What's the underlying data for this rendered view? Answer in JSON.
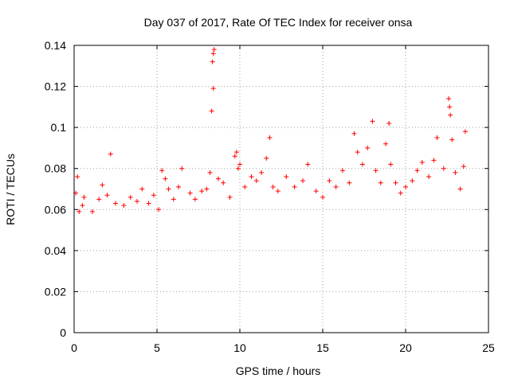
{
  "chart_data": {
    "type": "scatter",
    "title": "Day 037 of 2017, Rate Of TEC Index for receiver onsa",
    "xlabel": "GPS time / hours",
    "ylabel": "ROTI / TECUs",
    "xlim": [
      0,
      25
    ],
    "ylim": [
      0,
      0.14
    ],
    "xticks": [
      "0",
      "5",
      "10",
      "15",
      "20",
      "25"
    ],
    "yticks": [
      "0",
      "0.02",
      "0.04",
      "0.06",
      "0.08",
      "0.1",
      "0.12",
      "0.14"
    ],
    "grid": true,
    "marker": "plus",
    "color": "#ff0000",
    "series": [
      {
        "points": [
          [
            0.1,
            0.068
          ],
          [
            0.2,
            0.076
          ],
          [
            0.3,
            0.059
          ],
          [
            0.5,
            0.062
          ],
          [
            0.6,
            0.066
          ],
          [
            1.1,
            0.059
          ],
          [
            1.5,
            0.065
          ],
          [
            1.7,
            0.072
          ],
          [
            2.0,
            0.067
          ],
          [
            2.2,
            0.087
          ],
          [
            2.5,
            0.063
          ],
          [
            3.0,
            0.062
          ],
          [
            3.4,
            0.066
          ],
          [
            3.8,
            0.064
          ],
          [
            4.1,
            0.07
          ],
          [
            4.5,
            0.063
          ],
          [
            4.8,
            0.067
          ],
          [
            5.1,
            0.06
          ],
          [
            5.3,
            0.079
          ],
          [
            5.5,
            0.075
          ],
          [
            5.7,
            0.07
          ],
          [
            6.0,
            0.065
          ],
          [
            6.3,
            0.071
          ],
          [
            6.5,
            0.08
          ],
          [
            7.0,
            0.068
          ],
          [
            7.3,
            0.065
          ],
          [
            7.7,
            0.069
          ],
          [
            8.0,
            0.07
          ],
          [
            8.2,
            0.078
          ],
          [
            8.3,
            0.108
          ],
          [
            8.35,
            0.132
          ],
          [
            8.4,
            0.136
          ],
          [
            8.45,
            0.138
          ],
          [
            8.4,
            0.119
          ],
          [
            8.7,
            0.075
          ],
          [
            9.0,
            0.073
          ],
          [
            9.4,
            0.066
          ],
          [
            9.7,
            0.086
          ],
          [
            9.8,
            0.088
          ],
          [
            9.9,
            0.08
          ],
          [
            10.0,
            0.082
          ],
          [
            10.3,
            0.071
          ],
          [
            10.7,
            0.076
          ],
          [
            11.0,
            0.074
          ],
          [
            11.3,
            0.078
          ],
          [
            11.6,
            0.085
          ],
          [
            11.8,
            0.095
          ],
          [
            12.0,
            0.071
          ],
          [
            12.3,
            0.069
          ],
          [
            12.8,
            0.076
          ],
          [
            13.3,
            0.071
          ],
          [
            13.8,
            0.074
          ],
          [
            14.1,
            0.082
          ],
          [
            14.6,
            0.069
          ],
          [
            15.0,
            0.066
          ],
          [
            15.4,
            0.074
          ],
          [
            15.8,
            0.071
          ],
          [
            16.2,
            0.079
          ],
          [
            16.6,
            0.073
          ],
          [
            16.9,
            0.097
          ],
          [
            17.1,
            0.088
          ],
          [
            17.4,
            0.082
          ],
          [
            17.7,
            0.09
          ],
          [
            18.0,
            0.103
          ],
          [
            18.2,
            0.079
          ],
          [
            18.5,
            0.073
          ],
          [
            18.8,
            0.092
          ],
          [
            19.0,
            0.102
          ],
          [
            19.1,
            0.082
          ],
          [
            19.4,
            0.073
          ],
          [
            19.7,
            0.068
          ],
          [
            20.0,
            0.071
          ],
          [
            20.4,
            0.074
          ],
          [
            20.7,
            0.079
          ],
          [
            21.0,
            0.083
          ],
          [
            21.4,
            0.076
          ],
          [
            21.7,
            0.084
          ],
          [
            21.9,
            0.095
          ],
          [
            22.3,
            0.08
          ],
          [
            22.6,
            0.114
          ],
          [
            22.65,
            0.11
          ],
          [
            22.7,
            0.106
          ],
          [
            22.8,
            0.094
          ],
          [
            23.0,
            0.078
          ],
          [
            23.3,
            0.07
          ],
          [
            23.5,
            0.081
          ],
          [
            23.6,
            0.098
          ]
        ]
      }
    ]
  }
}
